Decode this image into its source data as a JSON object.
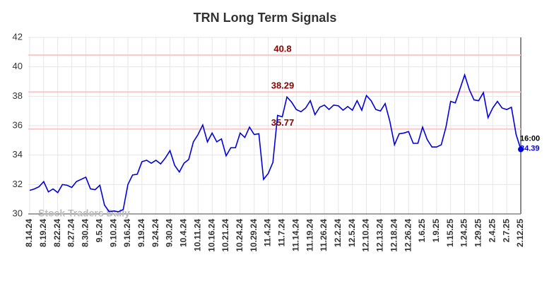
{
  "chart_data": {
    "type": "line",
    "title": "TRN Long Term Signals",
    "watermark": "Stock Traders Daily",
    "categories": [
      "8.14.24",
      null,
      null,
      "8.19.24",
      null,
      null,
      "8.22.24",
      null,
      null,
      "8.27.24",
      null,
      null,
      "8.30.24",
      null,
      null,
      "9.5.24",
      null,
      null,
      "9.10.24",
      null,
      null,
      "9.16.24",
      null,
      null,
      "9.19.24",
      null,
      null,
      "9.24.24",
      null,
      null,
      "9.30.24",
      null,
      null,
      "10.4.24",
      null,
      null,
      "10.11.24",
      null,
      null,
      "10.16.24",
      null,
      null,
      "10.21.24",
      null,
      null,
      "10.24.24",
      null,
      null,
      "10.29.24",
      null,
      null,
      "11.4.24",
      null,
      null,
      "11.7.24",
      null,
      null,
      "11.14.24",
      null,
      null,
      "11.19.24",
      null,
      null,
      "11.26.24",
      null,
      null,
      "12.2.24",
      null,
      null,
      "12.5.24",
      null,
      null,
      "12.10.24",
      null,
      null,
      "12.13.24",
      null,
      null,
      "12.18.24",
      null,
      null,
      "12.26.24",
      null,
      null,
      "1.6.25",
      null,
      null,
      "1.9.25",
      null,
      null,
      "1.15.25",
      null,
      null,
      "1.24.25",
      null,
      null,
      "1.29.25",
      null,
      null,
      "2.4.25",
      null,
      null,
      "2.7.25",
      null,
      null,
      "2.12.25"
    ],
    "series": [
      {
        "name": "TRN",
        "color": "#0000dd",
        "values": [
          31.6,
          31.7,
          31.85,
          32.2,
          31.5,
          31.7,
          31.45,
          32.0,
          31.95,
          31.8,
          32.2,
          32.35,
          32.5,
          31.7,
          31.65,
          31.95,
          30.6,
          30.15,
          30.2,
          30.15,
          30.3,
          32.0,
          32.65,
          32.7,
          33.55,
          33.65,
          33.45,
          33.65,
          33.4,
          33.8,
          34.3,
          33.3,
          32.85,
          33.45,
          33.7,
          34.9,
          35.4,
          36.05,
          34.9,
          35.5,
          34.9,
          35.1,
          33.95,
          34.5,
          34.5,
          35.5,
          35.2,
          35.9,
          35.4,
          35.45,
          32.35,
          32.75,
          33.5,
          36.7,
          36.6,
          37.95,
          37.6,
          37.1,
          36.95,
          37.2,
          37.7,
          36.75,
          37.25,
          37.4,
          37.1,
          37.4,
          37.35,
          37.05,
          37.3,
          37.05,
          37.7,
          37.05,
          38.05,
          37.7,
          37.1,
          37.0,
          37.5,
          36.3,
          34.7,
          35.45,
          35.5,
          35.6,
          34.8,
          34.8,
          35.9,
          35.05,
          34.55,
          34.55,
          34.7,
          35.9,
          37.65,
          37.55,
          38.5,
          39.45,
          38.45,
          37.75,
          37.7,
          38.25,
          36.55,
          37.2,
          37.65,
          37.2,
          37.1,
          37.25,
          35.4,
          34.39
        ]
      }
    ],
    "last_time": "16:00",
    "hlines": [
      40.8,
      38.29,
      35.77
    ],
    "ylim": [
      30,
      42
    ],
    "yticks": [
      30,
      32,
      34,
      36,
      38,
      40,
      42
    ],
    "grid": true
  }
}
